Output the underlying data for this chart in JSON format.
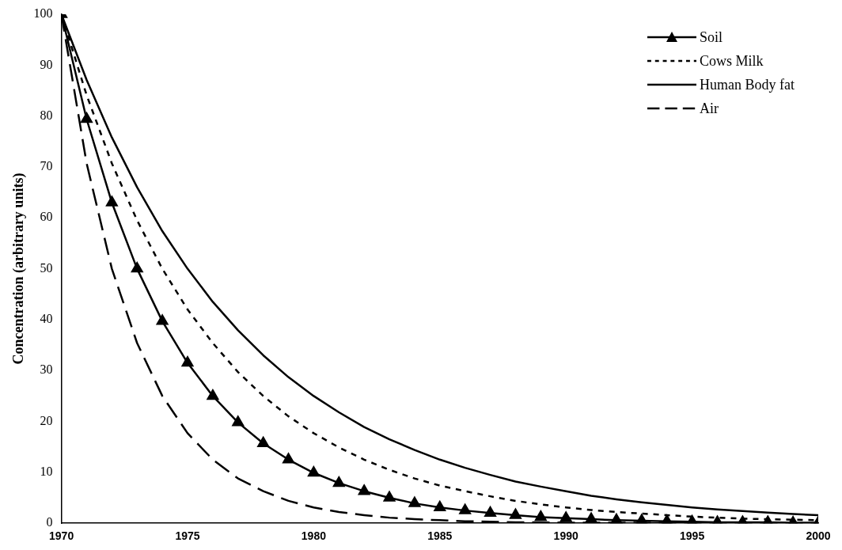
{
  "chart_data": {
    "type": "line",
    "ylabel": "Concentration (arbitrary units)",
    "x": [
      1970,
      1971,
      1972,
      1973,
      1974,
      1975,
      1976,
      1977,
      1978,
      1979,
      1980,
      1981,
      1982,
      1983,
      1984,
      1985,
      1986,
      1987,
      1988,
      1989,
      1990,
      1991,
      1992,
      1993,
      1994,
      1995,
      1996,
      1997,
      1998,
      1999,
      2000
    ],
    "series": [
      {
        "name": "Soil",
        "color": "#000000",
        "marker": "triangle",
        "line_style": "solid",
        "values": [
          100,
          79.4,
          63.0,
          50,
          39.7,
          31.5,
          25,
          19.8,
          15.7,
          12.5,
          9.9,
          7.9,
          6.3,
          5.0,
          3.9,
          3.1,
          2.5,
          2.0,
          1.6,
          1.2,
          1.0,
          0.8,
          0.6,
          0.5,
          0.4,
          0.3,
          0.2,
          0.2,
          0.2,
          0.1,
          0.1
        ]
      },
      {
        "name": "Cows Milk",
        "color": "#000000",
        "marker": "none",
        "line_style": "dotted",
        "values": [
          100,
          84.1,
          70.7,
          59.5,
          50,
          42.0,
          35.4,
          29.7,
          25,
          21.0,
          17.7,
          14.9,
          12.5,
          10.5,
          8.8,
          7.4,
          6.3,
          5.3,
          4.4,
          3.7,
          3.1,
          2.6,
          2.2,
          1.9,
          1.6,
          1.3,
          1.1,
          0.9,
          0.8,
          0.7,
          0.6
        ]
      },
      {
        "name": "Human Body fat",
        "color": "#000000",
        "marker": "none",
        "line_style": "solid",
        "values": [
          100,
          87.1,
          75.8,
          66.0,
          57.4,
          50,
          43.5,
          37.9,
          33.0,
          28.7,
          25,
          21.8,
          18.9,
          16.5,
          14.4,
          12.5,
          10.9,
          9.5,
          8.2,
          7.2,
          6.3,
          5.4,
          4.7,
          4.1,
          3.6,
          3.1,
          2.7,
          2.4,
          2.1,
          1.8,
          1.6
        ]
      },
      {
        "name": "Air",
        "color": "#000000",
        "marker": "none",
        "line_style": "dashed",
        "values": [
          100,
          70.7,
          50,
          35.4,
          25,
          17.7,
          12.5,
          8.8,
          6.3,
          4.4,
          3.1,
          2.2,
          1.6,
          1.1,
          0.8,
          0.6,
          0.4,
          0.3,
          0.2,
          0.2,
          0.1,
          0.1,
          0.1,
          0.1,
          0.1,
          0,
          0,
          0,
          0,
          0,
          0
        ]
      }
    ],
    "xlim": [
      1970,
      2000
    ],
    "xticks": [
      1970,
      1975,
      1980,
      1985,
      1990,
      1995,
      2000
    ],
    "ylim": [
      0,
      100
    ],
    "yticks": [
      0,
      10,
      20,
      30,
      40,
      50,
      60,
      70,
      80,
      90,
      100
    ],
    "grid": false,
    "legend": "top right"
  }
}
